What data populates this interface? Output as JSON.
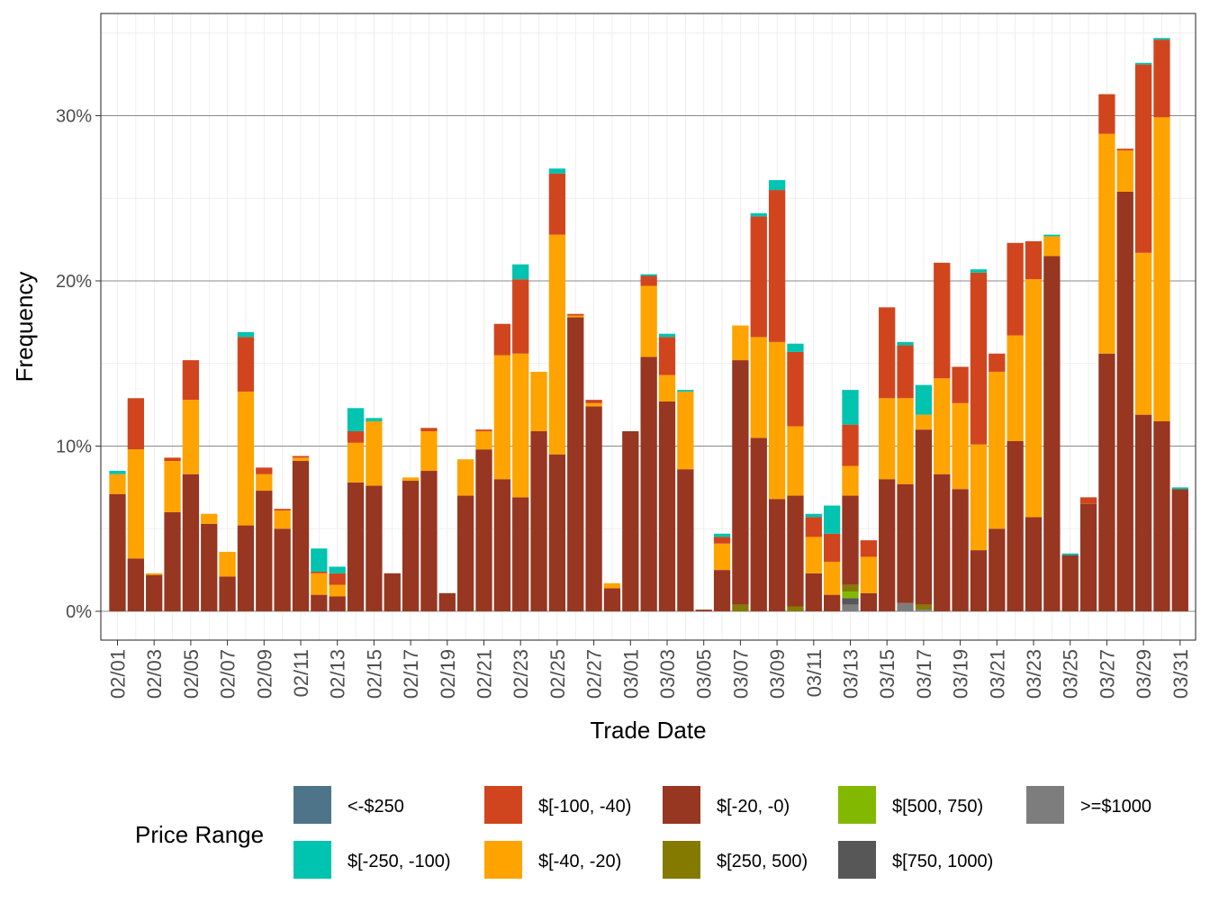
{
  "chart_data": {
    "type": "bar",
    "stacked": true,
    "xlabel": "Trade Date",
    "ylabel": "Frequency",
    "ylim": [
      -0.017,
      0.36
    ],
    "ytick_values": [
      0,
      0.1,
      0.2,
      0.3
    ],
    "ytick_labels": [
      "0%",
      "10%",
      "20%",
      "30%"
    ],
    "xtick_labels": [
      "02/01",
      "02/03",
      "02/05",
      "02/07",
      "02/09",
      "02/11",
      "02/13",
      "02/15",
      "02/17",
      "02/19",
      "02/21",
      "02/23",
      "02/25",
      "02/27",
      "03/01",
      "03/03",
      "03/05",
      "03/07",
      "03/09",
      "03/11",
      "03/13",
      "03/15",
      "03/17",
      "03/19",
      "03/21",
      "03/23",
      "03/25",
      "03/27",
      "03/29",
      "03/31"
    ],
    "grid": true,
    "legend_title": "Price Range",
    "legend_position": "bottom",
    "categories": [
      "02/01",
      "02/02",
      "02/03",
      "02/04",
      "02/05",
      "02/06",
      "02/07",
      "02/08",
      "02/09",
      "02/10",
      "02/11",
      "02/12",
      "02/13",
      "02/14",
      "02/15",
      "02/16",
      "02/17",
      "02/18",
      "02/19",
      "02/20",
      "02/21",
      "02/22",
      "02/23",
      "02/24",
      "02/25",
      "02/26",
      "02/27",
      "02/28",
      "03/01",
      "03/02",
      "03/03",
      "03/04",
      "03/05",
      "03/06",
      "03/07",
      "03/08",
      "03/09",
      "03/10",
      "03/11",
      "03/12",
      "03/13",
      "03/14",
      "03/15",
      "03/16",
      "03/17",
      "03/18",
      "03/19",
      "03/20",
      "03/21",
      "03/22",
      "03/23",
      "03/24",
      "03/25",
      "03/26",
      "03/27",
      "03/28",
      "03/29",
      "03/30",
      "03/31"
    ],
    "series": [
      {
        "name": "<-$250",
        "color": "#4E7489",
        "values": [
          0,
          0,
          0,
          0,
          0,
          0,
          0,
          0,
          0,
          0,
          0,
          0,
          0,
          0,
          0,
          0,
          0,
          0,
          0,
          0,
          0,
          0,
          0,
          0,
          0,
          0,
          0,
          0,
          0,
          0,
          0,
          0,
          0,
          0,
          0,
          0,
          0,
          0,
          0,
          0,
          0,
          0,
          0,
          0,
          0,
          0,
          0,
          0,
          0,
          0,
          0,
          0,
          0,
          0,
          0,
          0,
          0,
          0,
          0
        ]
      },
      {
        "name": "$[-250, -100)",
        "color": "#00C3B0",
        "values": [
          0.002,
          0,
          0,
          0,
          0,
          0,
          0,
          0.003,
          0,
          0,
          0,
          0.014,
          0.004,
          0.014,
          0.002,
          0,
          0,
          0,
          0,
          0,
          0,
          0,
          0.009,
          0,
          0.003,
          0,
          0,
          0,
          0,
          0.001,
          0.002,
          0.001,
          0,
          0.002,
          0,
          0.002,
          0.006,
          0.005,
          0.002,
          0.017,
          0.021,
          0,
          0,
          0.002,
          0.018,
          0,
          0,
          0.002,
          0,
          0,
          0,
          0.001,
          0.001,
          0,
          0,
          0,
          0.001,
          0.001,
          0.001
        ]
      },
      {
        "name": "$[-100, -40)",
        "color": "#D1451E",
        "values": [
          0,
          0.031,
          0,
          0.002,
          0.024,
          0,
          0,
          0.033,
          0.004,
          0.001,
          0.001,
          0.001,
          0.007,
          0.007,
          0,
          0,
          0,
          0.002,
          0,
          0,
          0.001,
          0.019,
          0.045,
          0,
          0.037,
          0.001,
          0.002,
          0,
          0,
          0.006,
          0.023,
          0,
          0,
          0.004,
          0,
          0.073,
          0.092,
          0.045,
          0.012,
          0.017,
          0.025,
          0.01,
          0.055,
          0.032,
          0,
          0.07,
          0.022,
          0.104,
          0.011,
          0.056,
          0.023,
          0,
          0,
          0.004,
          0.024,
          0.001,
          0.114,
          0.047,
          0
        ]
      },
      {
        "name": "$[-40, -20)",
        "color": "#FFA300",
        "values": [
          0.012,
          0.066,
          0.001,
          0.031,
          0.045,
          0.006,
          0.015,
          0.081,
          0.01,
          0.011,
          0.002,
          0.013,
          0.007,
          0.024,
          0.039,
          0,
          0.002,
          0.024,
          0,
          0.022,
          0.011,
          0.075,
          0.087,
          0.036,
          0.133,
          0.001,
          0.002,
          0.003,
          0,
          0.043,
          0.016,
          0.047,
          0,
          0.016,
          0.021,
          0.061,
          0.095,
          0.042,
          0.022,
          0.02,
          0.018,
          0.022,
          0.049,
          0.052,
          0.009,
          0.058,
          0.052,
          0.064,
          0.095,
          0.064,
          0.144,
          0.012,
          0,
          0,
          0.133,
          0.025,
          0.098,
          0.184,
          0
        ]
      },
      {
        "name": "$[-20, -0)",
        "color": "#973621",
        "values": [
          0.071,
          0.032,
          0.022,
          0.06,
          0.083,
          0.053,
          0.021,
          0.052,
          0.073,
          0.05,
          0.091,
          0.01,
          0.009,
          0.078,
          0.076,
          0.023,
          0.079,
          0.085,
          0.011,
          0.07,
          0.098,
          0.08,
          0.069,
          0.109,
          0.095,
          0.178,
          0.124,
          0.014,
          0.109,
          0.154,
          0.127,
          0.086,
          0.001,
          0.025,
          0.148,
          0.105,
          0.068,
          0.067,
          0.023,
          0.01,
          0.054,
          0.011,
          0.08,
          0.072,
          0.106,
          0.083,
          0.074,
          0.037,
          0.05,
          0.103,
          0.057,
          0.215,
          0.034,
          0.065,
          0.156,
          0.254,
          0.119,
          0.115,
          0.074
        ]
      },
      {
        "name": "$[250, 500)",
        "color": "#857A00",
        "values": [
          0,
          0,
          0,
          0,
          0,
          0,
          0,
          0,
          0,
          0,
          0,
          0,
          0,
          0,
          0,
          0,
          0,
          0,
          0,
          0,
          0,
          0,
          0,
          0,
          0,
          0,
          0,
          0,
          0,
          0,
          0,
          0,
          0,
          0,
          0.004,
          0,
          0,
          0.003,
          0,
          0,
          0.004,
          0,
          0,
          0,
          0.003,
          0,
          0,
          0,
          0,
          0,
          0,
          0,
          0,
          0,
          0,
          0,
          0,
          0,
          0
        ]
      },
      {
        "name": "$[500, 750)",
        "color": "#83B800",
        "values": [
          0,
          0,
          0,
          0,
          0,
          0,
          0,
          0,
          0,
          0,
          0,
          0,
          0,
          0,
          0,
          0,
          0,
          0,
          0,
          0,
          0,
          0,
          0,
          0,
          0,
          0,
          0,
          0,
          0,
          0,
          0,
          0,
          0,
          0,
          0,
          0,
          0,
          0,
          0,
          0,
          0.004,
          0,
          0,
          0,
          0,
          0,
          0,
          0,
          0,
          0,
          0,
          0,
          0,
          0,
          0,
          0,
          0,
          0,
          0
        ]
      },
      {
        "name": "$[750, 1000)",
        "color": "#575757",
        "values": [
          0,
          0,
          0,
          0,
          0,
          0,
          0,
          0,
          0,
          0,
          0,
          0,
          0,
          0,
          0,
          0,
          0,
          0,
          0,
          0,
          0,
          0,
          0,
          0,
          0,
          0,
          0,
          0,
          0,
          0,
          0,
          0,
          0,
          0,
          0,
          0,
          0,
          0,
          0,
          0,
          0.004,
          0,
          0,
          0,
          0,
          0,
          0,
          0,
          0,
          0,
          0,
          0,
          0,
          0,
          0,
          0,
          0,
          0,
          0
        ]
      },
      {
        "name": ">=$1000",
        "color": "#7D7D7D",
        "values": [
          0,
          0,
          0,
          0,
          0,
          0,
          0,
          0,
          0,
          0,
          0,
          0,
          0,
          0,
          0,
          0,
          0,
          0,
          0,
          0,
          0,
          0,
          0,
          0,
          0,
          0,
          0,
          0,
          0,
          0,
          0,
          0,
          0,
          0,
          0,
          0,
          0,
          0,
          0,
          0,
          0.004,
          0,
          0,
          0.005,
          0.001,
          0,
          0,
          0,
          0,
          0,
          0,
          0,
          0,
          0,
          0,
          0,
          0,
          0,
          0
        ]
      }
    ]
  }
}
